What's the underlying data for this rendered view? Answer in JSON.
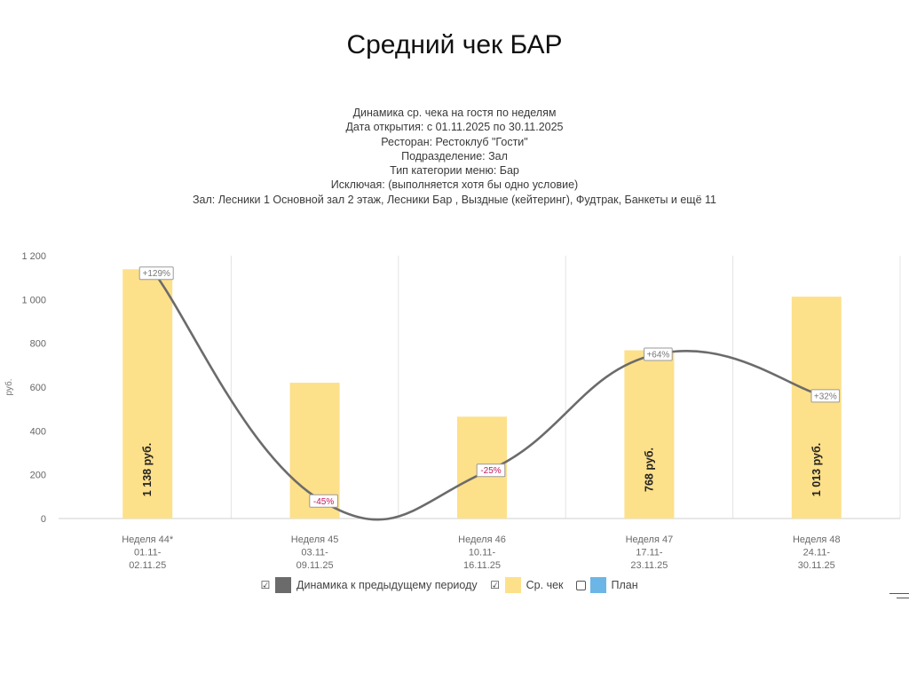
{
  "slide_title": "Средний чек БАР",
  "report_header": [
    "Динамика ср. чека на гостя по неделям",
    "Дата открытия: с 01.11.2025 по 30.11.2025",
    "Ресторан: Рестоклуб \"Гости\"",
    "Подразделение: Зал",
    "Тип категории меню: Бар",
    "Исключая: (выполняется хотя бы одно условие)",
    "Зал: Лесники 1 Основной зал 2 этаж, Лесники Бар , Выздные (кейтеринг), Фудтрак, Банкеты и ещё 11"
  ],
  "chart_data": {
    "type": "bar",
    "ylabel": "руб.",
    "ylim": [
      0,
      1200
    ],
    "yticks": [
      0,
      200,
      400,
      600,
      800,
      1000,
      1200
    ],
    "ytick_labels": [
      "0",
      "200",
      "400",
      "600",
      "800",
      "1 000",
      "1 200"
    ],
    "categories": [
      [
        "Неделя 44*",
        "01.11-",
        "02.11.25"
      ],
      [
        "Неделя 45",
        "03.11-",
        "09.11.25"
      ],
      [
        "Неделя 46",
        "10.11-",
        "16.11.25"
      ],
      [
        "Неделя 47",
        "17.11-",
        "23.11.25"
      ],
      [
        "Неделя 48",
        "24.11-",
        "30.11.25"
      ]
    ],
    "series": [
      {
        "name": "Ср. чек",
        "values": [
          1138,
          620,
          465,
          768,
          1013
        ],
        "value_labels": [
          "1 138 руб.",
          "",
          "",
          "768 руб.",
          "1 013 руб."
        ],
        "color": "#fde08a"
      },
      {
        "name": "Динамика к предыдущему периоду",
        "values": [
          129,
          -45,
          -25,
          64,
          32
        ],
        "labels": [
          "+129%",
          "-45%",
          "-25%",
          "+64%",
          "+32%"
        ],
        "line_y": [
          1120,
          80,
          220,
          750,
          560
        ],
        "color": "#6b6b6b",
        "label_colors": [
          "#777777",
          "#c2185b",
          "#c2185b",
          "#777777",
          "#777777"
        ]
      }
    ],
    "grid": true,
    "legend_position": "bottom-center"
  },
  "legend": [
    {
      "label": "Динамика к предыдущему периоду",
      "checked": true,
      "color": "#6b6b6b"
    },
    {
      "label": "Ср. чек",
      "checked": true,
      "color": "#fde08a"
    },
    {
      "label": "План",
      "checked": false,
      "color": "#6bb6e6"
    }
  ]
}
